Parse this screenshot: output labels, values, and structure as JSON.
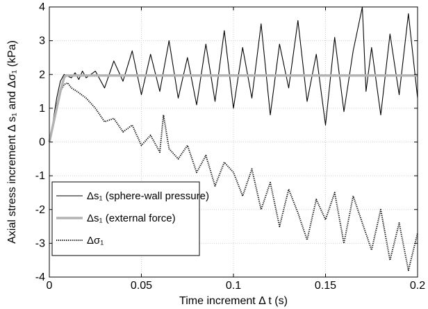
{
  "chart_data": {
    "type": "line",
    "title": "",
    "xlabel": "Time increment Δ t (s)",
    "ylabel": "Axial stress increment  Δ s₁ and  Δσ₁ (kPa)",
    "xlim": [
      0,
      0.2
    ],
    "ylim": [
      -4,
      4
    ],
    "x_ticks": [
      0,
      0.05,
      0.1,
      0.15,
      0.2
    ],
    "x_tick_labels": [
      "0",
      "0.05",
      "0.1",
      "0.15",
      "0.2"
    ],
    "y_ticks": [
      -4,
      -3,
      -2,
      -1,
      0,
      1,
      2,
      3,
      4
    ],
    "y_tick_labels": [
      "-4",
      "-3",
      "-2",
      "-1",
      "0",
      "1",
      "2",
      "3",
      "4"
    ],
    "grid": true,
    "legend_position": "bottom-left",
    "series": [
      {
        "name": "Δs₁ (sphere-wall pressure)",
        "color": "#000000",
        "style": "solid-thin",
        "x": [
          0,
          0.002,
          0.004,
          0.006,
          0.008,
          0.01,
          0.012,
          0.014,
          0.016,
          0.018,
          0.02,
          0.025,
          0.03,
          0.035,
          0.04,
          0.045,
          0.05,
          0.055,
          0.06,
          0.065,
          0.07,
          0.075,
          0.08,
          0.085,
          0.09,
          0.095,
          0.1,
          0.105,
          0.11,
          0.115,
          0.12,
          0.125,
          0.13,
          0.135,
          0.14,
          0.145,
          0.15,
          0.155,
          0.16,
          0.165,
          0.17,
          0.172,
          0.175,
          0.18,
          0.185,
          0.19,
          0.195,
          0.2
        ],
        "y": [
          0,
          0.6,
          1.3,
          1.8,
          2.0,
          1.95,
          1.9,
          2.05,
          1.85,
          2.1,
          1.9,
          2.1,
          1.6,
          2.4,
          1.8,
          2.7,
          1.4,
          2.6,
          1.5,
          3.0,
          1.3,
          2.5,
          1.1,
          2.9,
          1.2,
          3.3,
          1.0,
          2.8,
          1.3,
          3.5,
          0.8,
          2.9,
          1.6,
          3.6,
          1.2,
          2.6,
          0.5,
          3.1,
          0.9,
          2.7,
          4.0,
          1.5,
          2.8,
          0.8,
          3.2,
          1.4,
          3.8,
          1.3
        ]
      },
      {
        "name": "Δs₁ (external force)",
        "color": "#b3b3b3",
        "style": "solid-thick",
        "x": [
          0,
          0.002,
          0.004,
          0.006,
          0.008,
          0.009,
          0.01,
          0.05,
          0.1,
          0.15,
          0.2
        ],
        "y": [
          0,
          0.5,
          1.0,
          1.5,
          1.9,
          1.97,
          1.97,
          1.97,
          1.97,
          1.97,
          1.97
        ]
      },
      {
        "name": "Δσ₁",
        "color": "#000000",
        "style": "dotted",
        "x": [
          0,
          0.002,
          0.004,
          0.006,
          0.008,
          0.01,
          0.012,
          0.015,
          0.02,
          0.025,
          0.03,
          0.035,
          0.04,
          0.045,
          0.05,
          0.055,
          0.06,
          0.062,
          0.065,
          0.07,
          0.075,
          0.08,
          0.085,
          0.09,
          0.095,
          0.1,
          0.105,
          0.11,
          0.115,
          0.12,
          0.125,
          0.13,
          0.135,
          0.14,
          0.145,
          0.15,
          0.155,
          0.16,
          0.165,
          0.17,
          0.175,
          0.18,
          0.185,
          0.19,
          0.195,
          0.2
        ],
        "y": [
          0,
          0.5,
          1.1,
          1.5,
          1.7,
          1.75,
          1.6,
          1.5,
          1.3,
          1.0,
          0.6,
          0.7,
          0.3,
          0.5,
          -0.1,
          0.2,
          -0.3,
          0.8,
          -0.2,
          -0.5,
          -0.1,
          -0.9,
          -0.4,
          -1.3,
          -0.6,
          -0.9,
          -1.6,
          -0.8,
          -2.0,
          -1.2,
          -2.5,
          -1.4,
          -2.1,
          -2.9,
          -1.7,
          -2.3,
          -1.5,
          -3.0,
          -1.6,
          -2.4,
          -3.2,
          -2.0,
          -3.5,
          -2.4,
          -3.8,
          -2.7
        ]
      }
    ]
  }
}
